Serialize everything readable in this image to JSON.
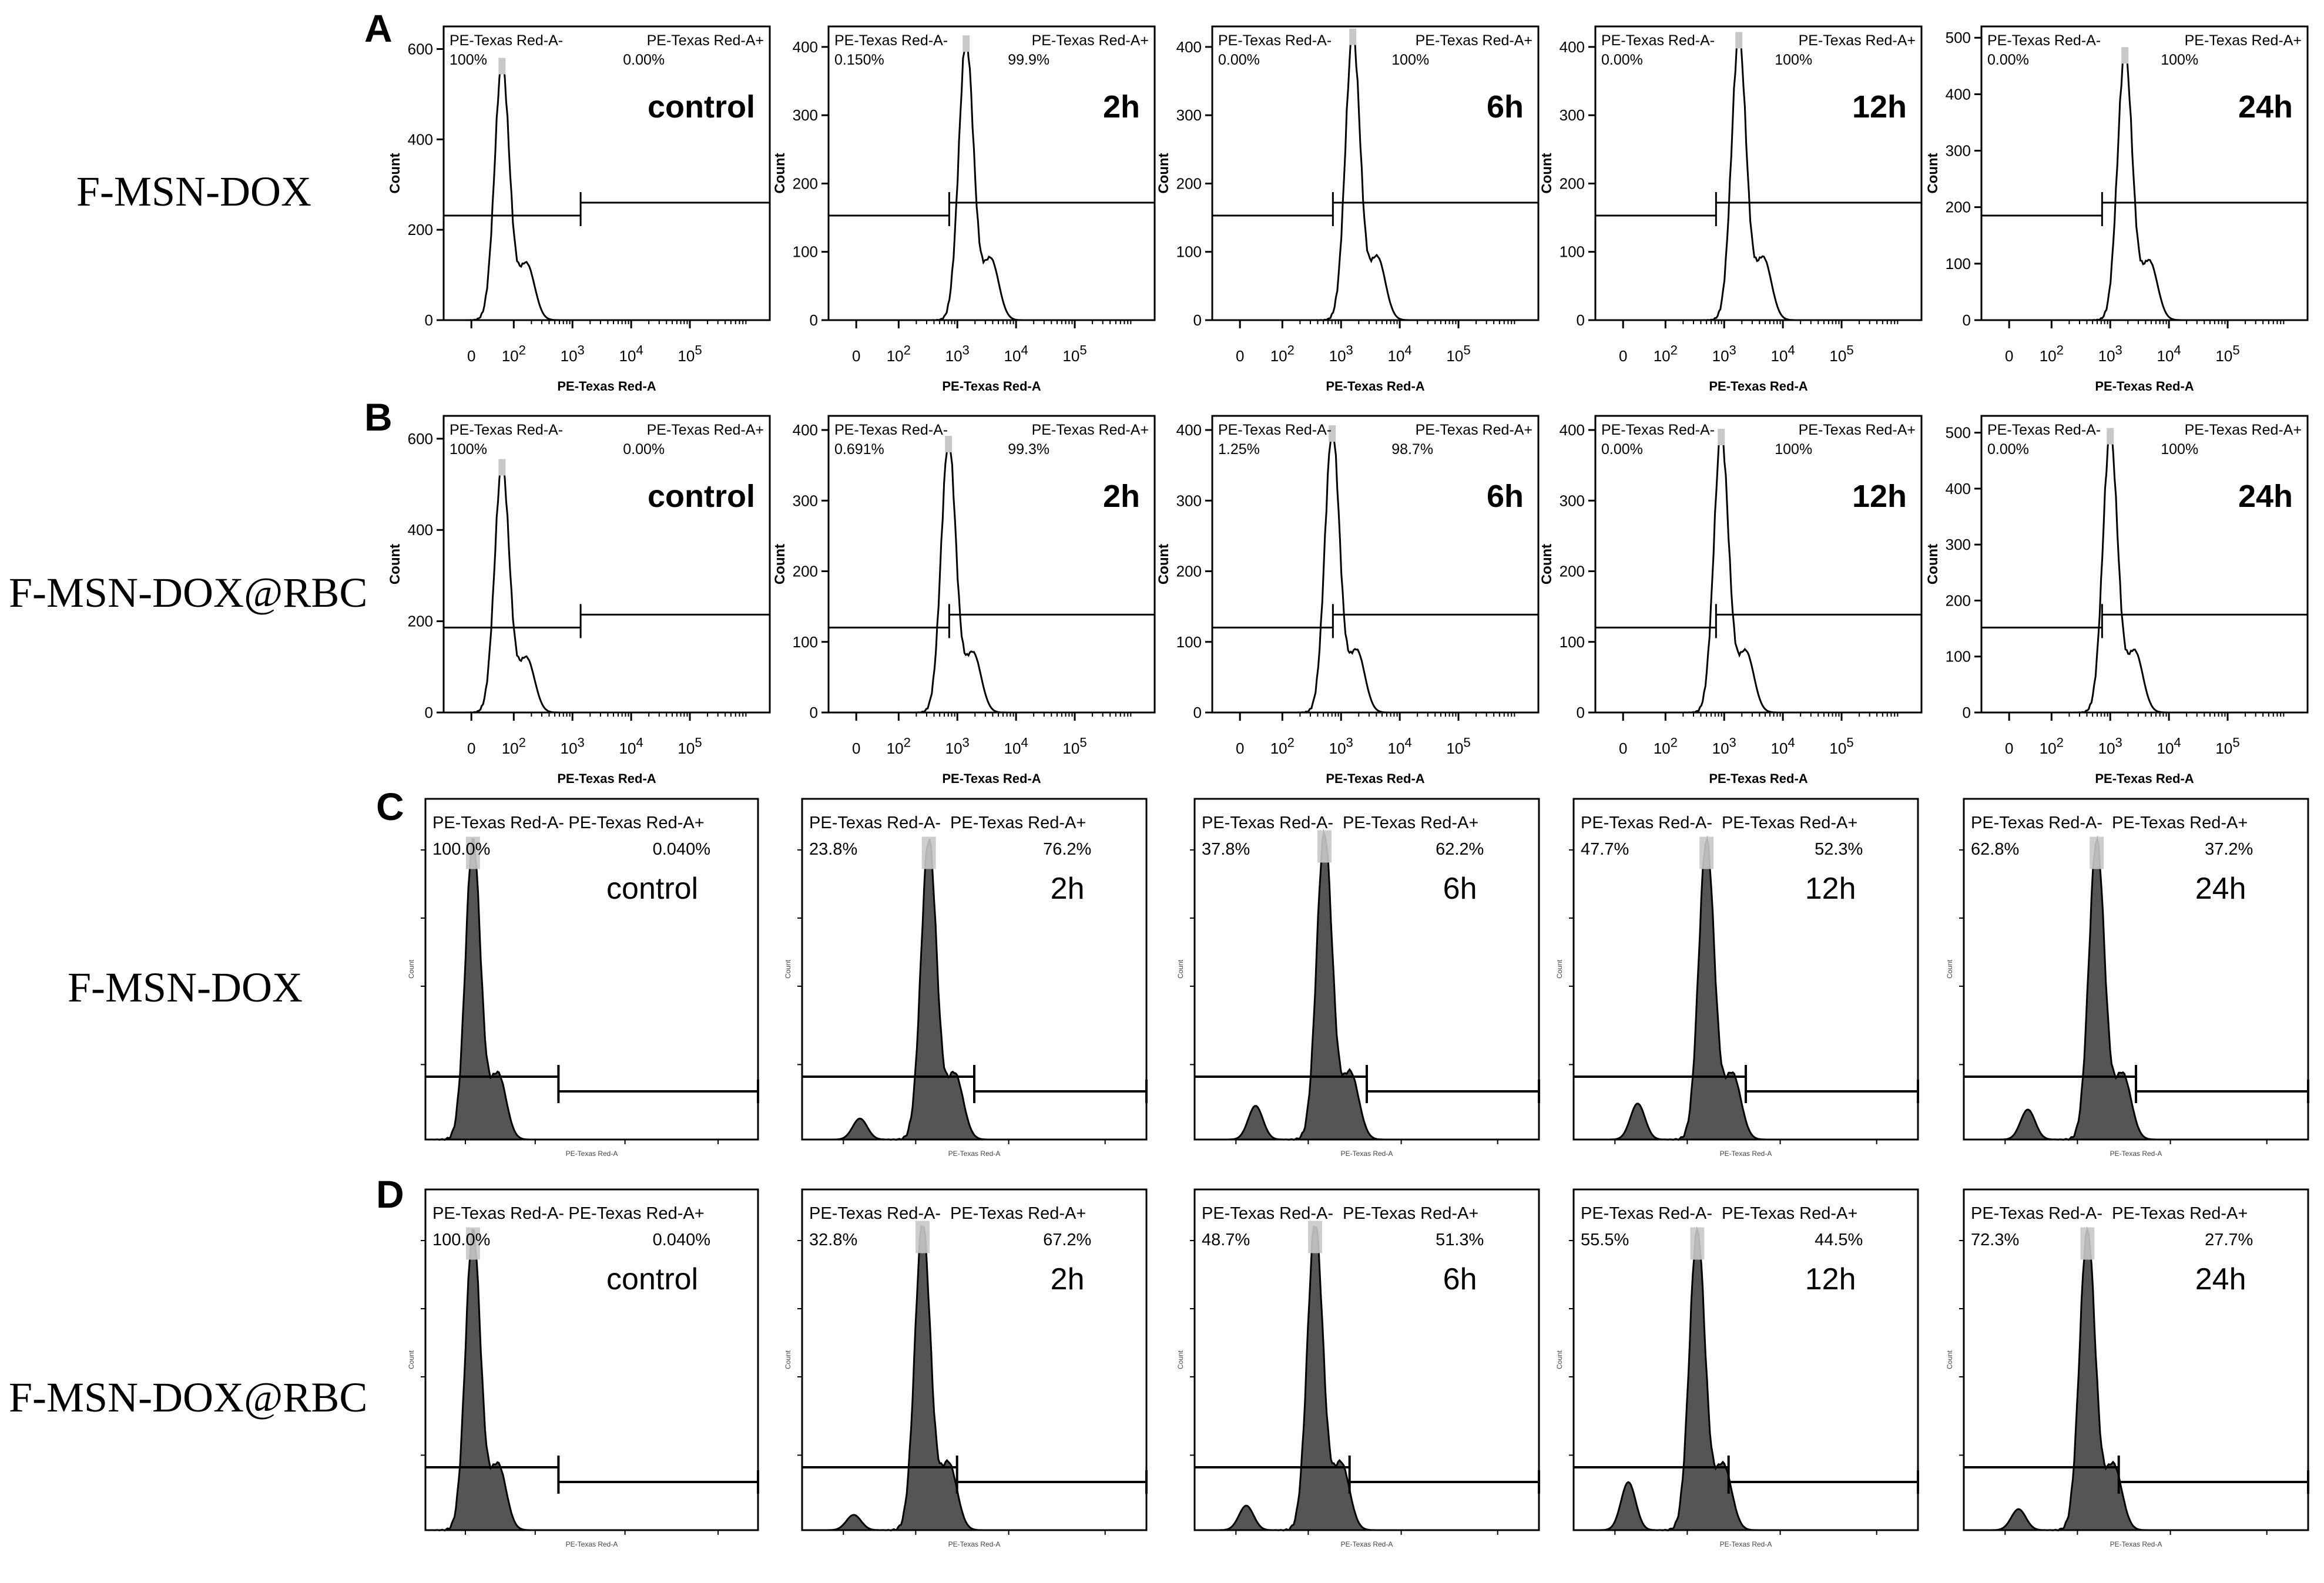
{
  "figure": {
    "rows": [
      {
        "letter": "A",
        "sample": "F-MSN-DOX"
      },
      {
        "letter": "B",
        "sample": "F-MSN-DOX@RBC"
      },
      {
        "letter": "C",
        "sample": "F-MSN-DOX"
      },
      {
        "letter": "D",
        "sample": "F-MSN-DOX@RBC"
      }
    ],
    "gate_left_label": "PE-Texas Red-A-",
    "gate_right_label": "PE-Texas Red-A+",
    "x_axis_label": "PE-Texas Red-A",
    "y_axis_label": "Count",
    "colors": {
      "outline": "#000000",
      "fill": "#555555",
      "peak_highlight": "#c8c8c8",
      "background": "#ffffff"
    }
  },
  "chart_data": [
    {
      "type": "histogram",
      "row": "A",
      "timepoint": "control",
      "left_pct": "100%",
      "right_pct": "0.00%",
      "ylim": [
        0,
        650
      ],
      "yticks": [
        "0",
        "200",
        "400",
        "600"
      ],
      "xticks": [
        "0",
        "10^2",
        "10^3",
        "10^4",
        "10^5"
      ],
      "peak_log10": 1.8,
      "peak_count": 570
    },
    {
      "type": "histogram",
      "row": "A",
      "timepoint": "2h",
      "left_pct": "0.150%",
      "right_pct": "99.9%",
      "ylim": [
        0,
        430
      ],
      "yticks": [
        "0",
        "100",
        "200",
        "300",
        "400"
      ],
      "xticks": [
        "0",
        "10^2",
        "10^3",
        "10^4",
        "10^5"
      ],
      "peak_log10": 3.15,
      "peak_count": 410
    },
    {
      "type": "histogram",
      "row": "A",
      "timepoint": "6h",
      "left_pct": "0.00%",
      "right_pct": "100%",
      "ylim": [
        0,
        430
      ],
      "yticks": [
        "0",
        "100",
        "200",
        "300",
        "400"
      ],
      "xticks": [
        "0",
        "10^2",
        "10^3",
        "10^4",
        "10^5"
      ],
      "peak_log10": 3.2,
      "peak_count": 420
    },
    {
      "type": "histogram",
      "row": "A",
      "timepoint": "12h",
      "left_pct": "0.00%",
      "right_pct": "100%",
      "ylim": [
        0,
        430
      ],
      "yticks": [
        "0",
        "100",
        "200",
        "300",
        "400"
      ],
      "xticks": [
        "0",
        "10^2",
        "10^3",
        "10^4",
        "10^5"
      ],
      "peak_log10": 3.25,
      "peak_count": 415
    },
    {
      "type": "histogram",
      "row": "A",
      "timepoint": "24h",
      "left_pct": "0.00%",
      "right_pct": "100%",
      "ylim": [
        0,
        520
      ],
      "yticks": [
        "0",
        "100",
        "200",
        "300",
        "400",
        "500"
      ],
      "xticks": [
        "0",
        "10^2",
        "10^3",
        "10^4",
        "10^5"
      ],
      "peak_log10": 3.25,
      "peak_count": 475
    },
    {
      "type": "histogram",
      "row": "B",
      "timepoint": "control",
      "left_pct": "100%",
      "right_pct": "0.00%",
      "ylim": [
        0,
        650
      ],
      "yticks": [
        "0",
        "200",
        "400",
        "600"
      ],
      "xticks": [
        "0",
        "10^2",
        "10^3",
        "10^4",
        "10^5"
      ],
      "peak_log10": 1.8,
      "peak_count": 545
    },
    {
      "type": "histogram",
      "row": "B",
      "timepoint": "2h",
      "left_pct": "0.691%",
      "right_pct": "99.3%",
      "ylim": [
        0,
        420
      ],
      "yticks": [
        "0",
        "100",
        "200",
        "300",
        "400"
      ],
      "xticks": [
        "0",
        "10^2",
        "10^3",
        "10^4",
        "10^5"
      ],
      "peak_log10": 2.85,
      "peak_count": 385
    },
    {
      "type": "histogram",
      "row": "B",
      "timepoint": "6h",
      "left_pct": "1.25%",
      "right_pct": "98.7%",
      "ylim": [
        0,
        420
      ],
      "yticks": [
        "0",
        "100",
        "200",
        "300",
        "400"
      ],
      "xticks": [
        "0",
        "10^2",
        "10^3",
        "10^4",
        "10^5"
      ],
      "peak_log10": 2.85,
      "peak_count": 400
    },
    {
      "type": "histogram",
      "row": "B",
      "timepoint": "12h",
      "left_pct": "0.00%",
      "right_pct": "100%",
      "ylim": [
        0,
        420
      ],
      "yticks": [
        "0",
        "100",
        "200",
        "300",
        "400"
      ],
      "xticks": [
        "0",
        "10^2",
        "10^3",
        "10^4",
        "10^5"
      ],
      "peak_log10": 2.95,
      "peak_count": 395
    },
    {
      "type": "histogram",
      "row": "B",
      "timepoint": "24h",
      "left_pct": "0.00%",
      "right_pct": "100%",
      "ylim": [
        0,
        530
      ],
      "yticks": [
        "0",
        "100",
        "200",
        "300",
        "400",
        "500"
      ],
      "xticks": [
        "0",
        "10^2",
        "10^3",
        "10^4",
        "10^5"
      ],
      "peak_log10": 3.0,
      "peak_count": 500
    },
    {
      "type": "histogram",
      "row": "C",
      "timepoint": "control",
      "left_pct": "100.0%",
      "right_pct": "0.040%",
      "peak_log10": 1.6,
      "peak_frac": 0.93,
      "shoulder": 0
    },
    {
      "type": "histogram",
      "row": "C",
      "timepoint": "2h",
      "left_pct": "23.8%",
      "right_pct": "76.2%",
      "peak_log10": 2.85,
      "peak_frac": 0.93,
      "shoulder": 0.07
    },
    {
      "type": "histogram",
      "row": "C",
      "timepoint": "6h",
      "left_pct": "37.8%",
      "right_pct": "62.2%",
      "peak_log10": 2.9,
      "peak_frac": 0.95,
      "shoulder": 0.11
    },
    {
      "type": "histogram",
      "row": "C",
      "timepoint": "12h",
      "left_pct": "47.7%",
      "right_pct": "52.3%",
      "peak_log10": 2.95,
      "peak_frac": 0.93,
      "shoulder": 0.12
    },
    {
      "type": "histogram",
      "row": "C",
      "timepoint": "24h",
      "left_pct": "62.8%",
      "right_pct": "37.2%",
      "peak_log10": 2.95,
      "peak_frac": 0.93,
      "shoulder": 0.1
    },
    {
      "type": "histogram",
      "row": "D",
      "timepoint": "control",
      "left_pct": "100.0%",
      "right_pct": "0.040%",
      "peak_log10": 1.6,
      "peak_frac": 0.93,
      "shoulder": 0
    },
    {
      "type": "histogram",
      "row": "D",
      "timepoint": "2h",
      "left_pct": "32.8%",
      "right_pct": "67.2%",
      "peak_log10": 2.75,
      "peak_frac": 0.95,
      "shoulder": 0.05
    },
    {
      "type": "histogram",
      "row": "D",
      "timepoint": "6h",
      "left_pct": "48.7%",
      "right_pct": "51.3%",
      "peak_log10": 2.75,
      "peak_frac": 0.95,
      "shoulder": 0.08
    },
    {
      "type": "histogram",
      "row": "D",
      "timepoint": "12h",
      "left_pct": "55.5%",
      "right_pct": "44.5%",
      "peak_log10": 2.8,
      "peak_frac": 0.93,
      "shoulder": 0.16
    },
    {
      "type": "histogram",
      "row": "D",
      "timepoint": "24h",
      "left_pct": "72.3%",
      "right_pct": "27.7%",
      "peak_log10": 2.8,
      "peak_frac": 0.93,
      "shoulder": 0.07
    }
  ]
}
